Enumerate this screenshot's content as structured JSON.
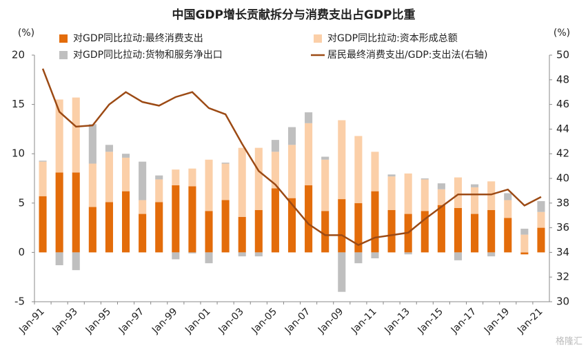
{
  "chart_data": {
    "type": "bar_line",
    "title": "中国GDP增长贡献拆分与消费支出占GDP比重",
    "y_unit": "(%)",
    "y2_unit": "(%)",
    "watermark": "格隆汇",
    "categories": [
      "Jan-91",
      null,
      "Jan-93",
      null,
      "Jan-95",
      null,
      "Jan-97",
      null,
      "Jan-99",
      null,
      "Jan-01",
      null,
      "Jan-03",
      null,
      "Jan-05",
      null,
      "Jan-07",
      null,
      "Jan-09",
      null,
      "Jan-11",
      null,
      "Jan-13",
      null,
      "Jan-15",
      null,
      "Jan-17",
      null,
      "Jan-19",
      null,
      "Jan-21"
    ],
    "series": [
      {
        "name": "对GDP同比拉动:最终消费支出",
        "kind": "bar",
        "color": "#E36C0A",
        "values": [
          5.7,
          8.1,
          8.1,
          4.6,
          5.1,
          6.2,
          3.9,
          5.1,
          6.8,
          6.7,
          4.2,
          5.3,
          3.6,
          4.3,
          6.5,
          5.5,
          6.8,
          4.2,
          5.4,
          5.0,
          6.2,
          4.3,
          3.9,
          4.2,
          4.8,
          4.5,
          3.9,
          4.3,
          3.5,
          -0.2,
          2.5
        ]
      },
      {
        "name": "对GDP同比拉动:资本形成总额",
        "kind": "bar",
        "color": "#FBCFA8",
        "values": [
          3.5,
          7.4,
          7.6,
          4.4,
          5.1,
          3.4,
          1.4,
          2.3,
          1.6,
          1.8,
          5.2,
          3.7,
          7.0,
          6.3,
          3.7,
          5.4,
          6.3,
          5.2,
          8.0,
          6.8,
          4.0,
          3.4,
          4.1,
          3.2,
          1.6,
          3.1,
          2.7,
          2.9,
          1.8,
          1.8,
          1.6
        ]
      },
      {
        "name": "对GDP同比拉动:货物和服务净出口",
        "kind": "bar",
        "color": "#BFBFBF",
        "values": [
          0.1,
          -1.3,
          -1.8,
          4.0,
          0.7,
          0.4,
          3.9,
          0.4,
          -0.7,
          -0.1,
          -1.1,
          0.1,
          -0.4,
          -0.4,
          1.2,
          1.8,
          1.1,
          0.3,
          -4.0,
          -1.1,
          -0.6,
          0.2,
          -0.2,
          0.1,
          0.6,
          -0.8,
          0.3,
          -0.4,
          0.7,
          0.6,
          1.1
        ]
      },
      {
        "name": "居民最终消费支出/GDP:支出法(右轴)",
        "kind": "line",
        "axis": "y2",
        "color": "#9C4A14",
        "values": [
          48.9,
          45.4,
          44.2,
          44.3,
          46.0,
          47.0,
          46.2,
          45.9,
          46.6,
          47.0,
          45.7,
          45.2,
          42.8,
          40.6,
          39.5,
          37.9,
          36.3,
          35.4,
          35.4,
          34.6,
          35.2,
          35.4,
          35.6,
          36.7,
          37.7,
          38.7,
          38.7,
          38.7,
          39.1,
          37.8,
          38.5
        ]
      }
    ],
    "ylim": [
      -5,
      20
    ],
    "yticks": [
      -5,
      0,
      5,
      10,
      15,
      20
    ],
    "y2lim": [
      30,
      50
    ],
    "y2ticks": [
      30,
      32,
      34,
      36,
      38,
      40,
      42,
      44,
      46,
      48,
      50
    ]
  }
}
